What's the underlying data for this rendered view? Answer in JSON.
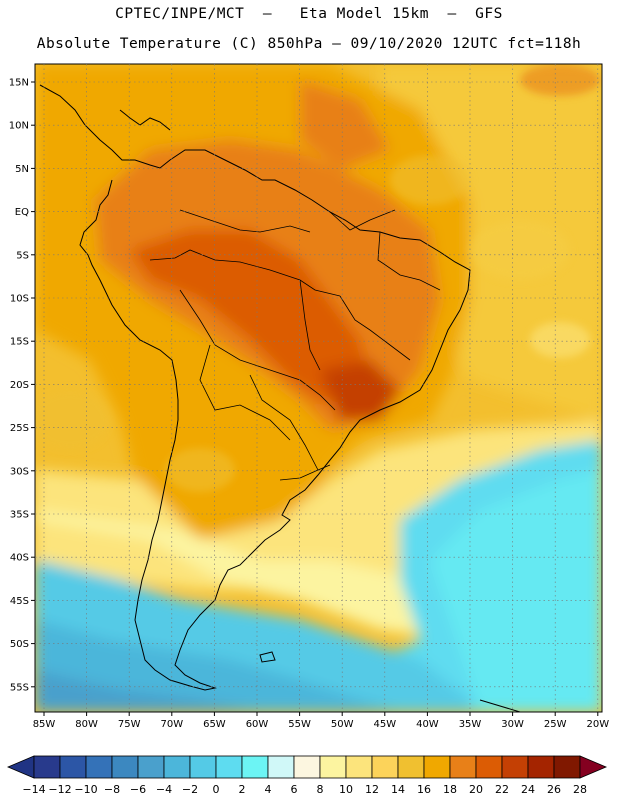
{
  "header": {
    "line1": "CPTEC/INPE/MCT  –   Eta Model 15km  –  GFS",
    "line2": "Absolute Temperature (C) 850hPa – 09/10/2020 12UTC fct=118h"
  },
  "axes": {
    "lat_labels": [
      "15N",
      "10N",
      "5N",
      "EQ",
      "5S",
      "10S",
      "15S",
      "20S",
      "25S",
      "30S",
      "35S",
      "40S",
      "45S",
      "50S",
      "55S"
    ],
    "lon_labels": [
      "85W",
      "80W",
      "75W",
      "70W",
      "65W",
      "60W",
      "55W",
      "50W",
      "45W",
      "40W",
      "35W",
      "30W",
      "25W",
      "20W"
    ]
  },
  "colorbar": {
    "labels": [
      "−14",
      "−12",
      "−10",
      "−8",
      "−6",
      "−4",
      "−2",
      "0",
      "2",
      "4",
      "6",
      "8",
      "10",
      "12",
      "14",
      "16",
      "18",
      "20",
      "22",
      "24",
      "26",
      "28"
    ],
    "colors": [
      "#283a8c",
      "#2c56a6",
      "#3472b8",
      "#3c88c0",
      "#4aa0cc",
      "#4cb6da",
      "#54cae6",
      "#5edcf0",
      "#6cf4f4",
      "#d0f8f8",
      "#fcf6e0",
      "#fcf4a0",
      "#fce47c",
      "#fcd35a",
      "#f0c030",
      "#f0a800",
      "#e88018",
      "#dc5c04",
      "#c44004",
      "#a42400",
      "#801800"
    ],
    "low_color": "#203484",
    "high_color": "#840020"
  }
}
